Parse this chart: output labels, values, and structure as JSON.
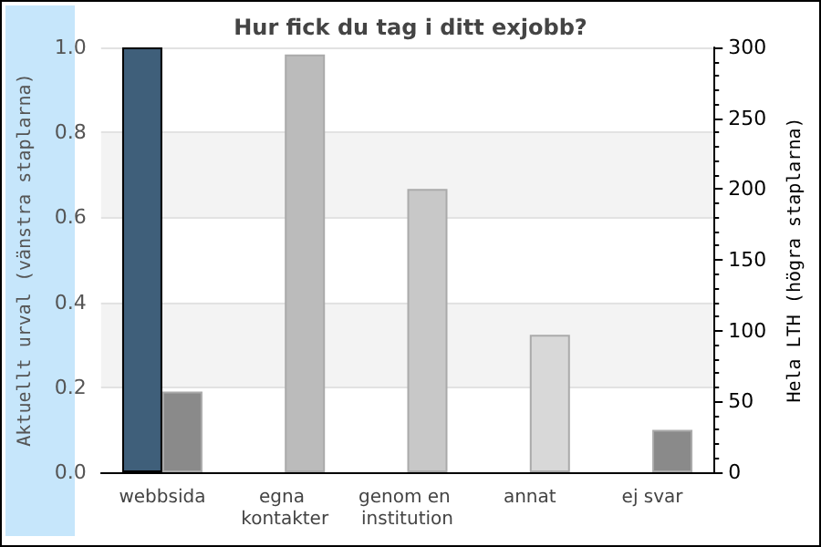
{
  "chart_data": {
    "type": "bar",
    "title": "Hur fick du tag i ditt exjobb?",
    "ylabel": "Aktuellt urval (vänstra staplarna)",
    "y2label": "Hela LTH (högra staplarna)",
    "categories": [
      "webbsida",
      "egna kontakter",
      "genom en institution",
      "annat",
      "ej svar"
    ],
    "series": [
      {
        "color": "#3f5f7a",
        "values": [
          1.0,
          0,
          0,
          0,
          0
        ]
      },
      {
        "axis": "y2",
        "colors": [
          "#8a8a8a",
          "#bbbbbb",
          "#c8c8c8",
          "#d8d8d8",
          "#8a8a8a"
        ],
        "values": [
          57,
          295,
          200,
          97,
          30
        ]
      }
    ],
    "ylim": [
      0,
      1
    ],
    "yticks": [
      {
        "value": 0,
        "label": "0.0"
      },
      {
        "value": 0.2,
        "label": "0.2"
      },
      {
        "value": 0.4,
        "label": "0.4"
      },
      {
        "value": 0.6,
        "label": "0.6"
      },
      {
        "value": 0.8,
        "label": "0.8"
      },
      {
        "value": 1,
        "label": "1.0"
      }
    ],
    "y2lim": [
      0,
      300
    ],
    "y2ticks": [
      0,
      50,
      100,
      150,
      200,
      250,
      300
    ],
    "grid": "y"
  }
}
